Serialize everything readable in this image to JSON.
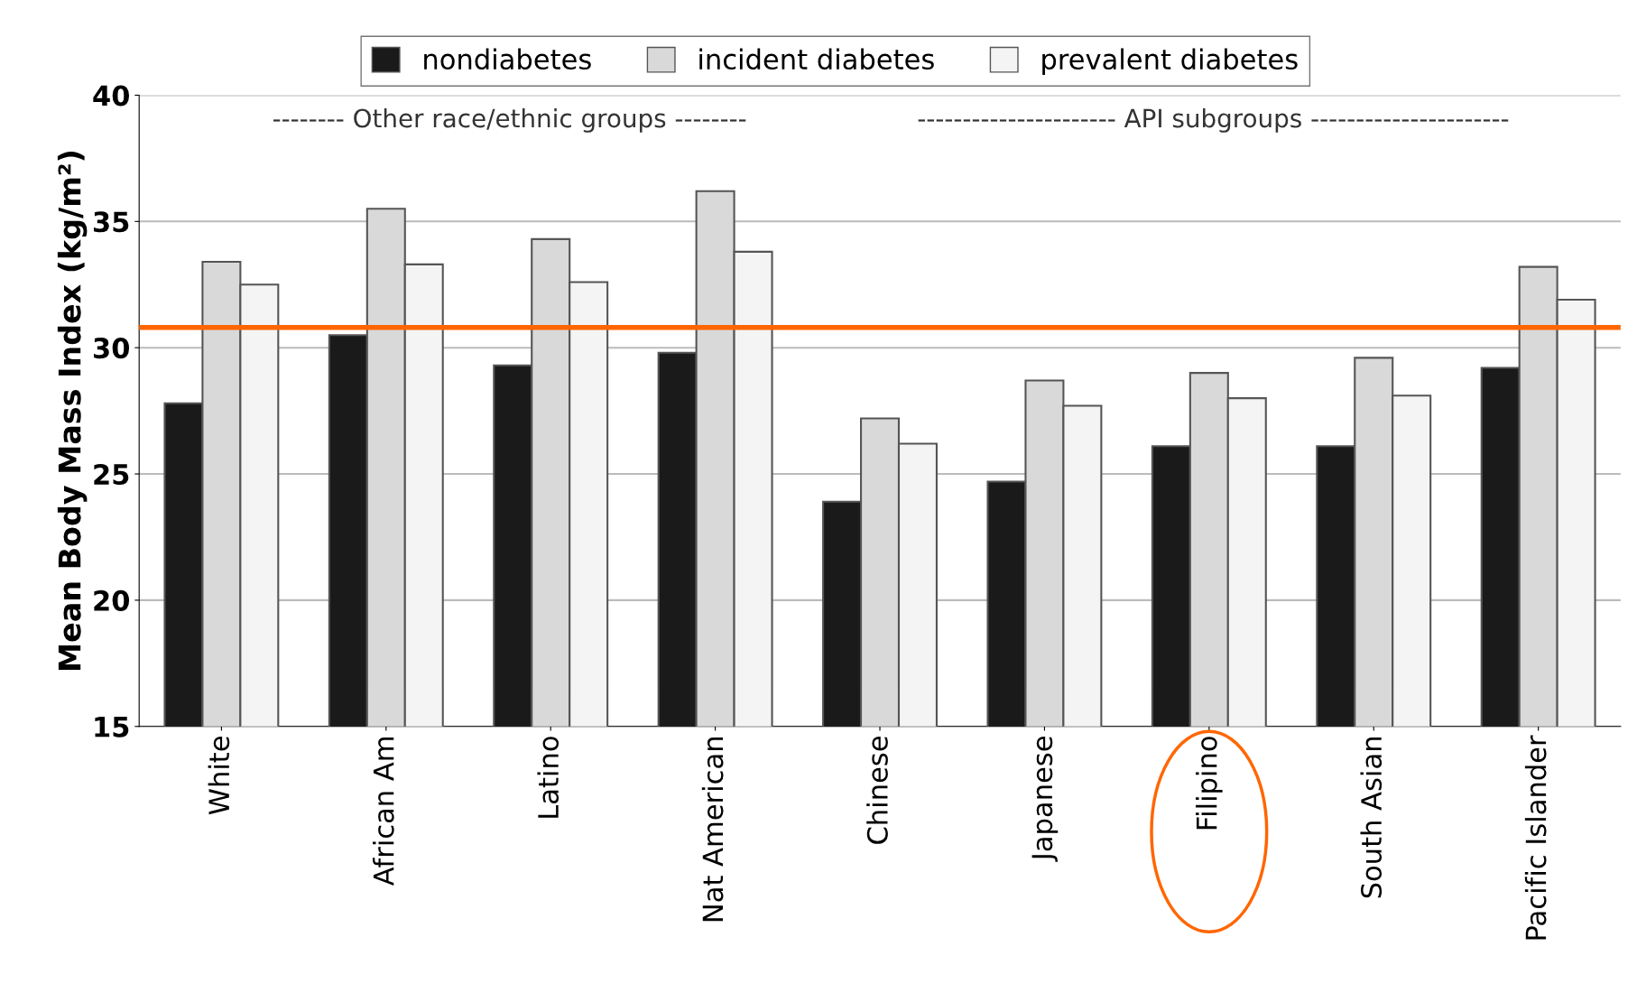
{
  "chart_data": {
    "type": "bar",
    "ylabel": "Mean Body Mass Index (kg/m²)",
    "categories": [
      "White",
      "African Am",
      "Latino",
      "Nat American",
      "Chinese",
      "Japanese",
      "Filipino",
      "South Asian",
      "Pacific Islander"
    ],
    "series": [
      {
        "name": "nondiabetes",
        "color": "#1a1a1a",
        "values": [
          27.8,
          30.5,
          29.3,
          29.8,
          23.9,
          24.7,
          26.1,
          26.1,
          29.2
        ]
      },
      {
        "name": "incident diabetes",
        "color": "#d9d9d9",
        "values": [
          33.4,
          35.5,
          34.3,
          36.2,
          27.2,
          28.7,
          29.0,
          29.6,
          33.2
        ]
      },
      {
        "name": "prevalent diabetes",
        "color": "#f4f4f4",
        "values": [
          32.5,
          33.3,
          32.6,
          33.8,
          26.2,
          27.7,
          28.0,
          28.1,
          31.9
        ]
      }
    ],
    "ylim": [
      15,
      40
    ],
    "yticks": [
      15,
      20,
      25,
      30,
      35,
      40
    ],
    "grid": "y",
    "legend": "top",
    "ref_lines": [
      {
        "axis": "y",
        "value": 30.8,
        "color": "#ff6600"
      }
    ],
    "annotations": [
      "-------- Other race/ethnic groups --------",
      "---------------------- API subgroups ----------------------"
    ]
  }
}
